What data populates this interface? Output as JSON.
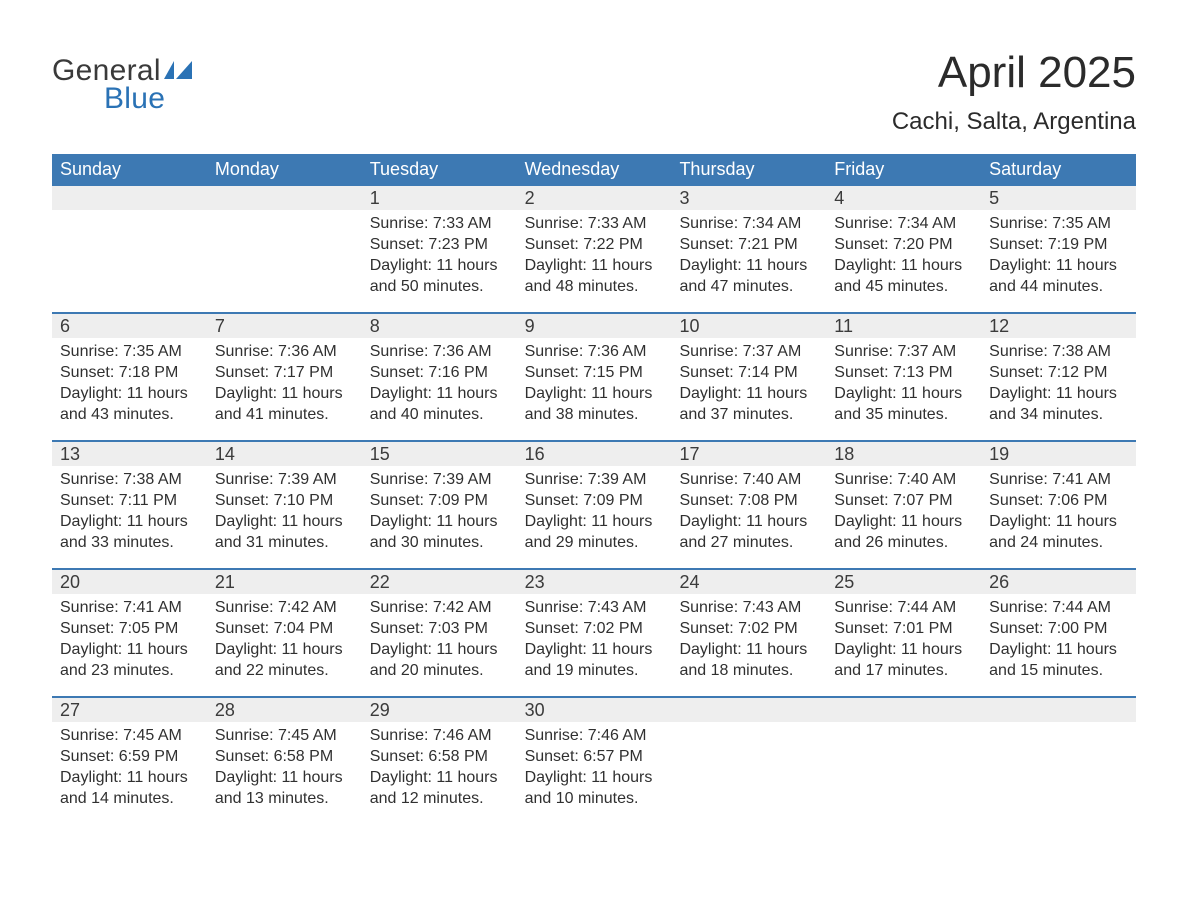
{
  "logo": {
    "line1": "General",
    "line2": "Blue"
  },
  "title": "April 2025",
  "subtitle": "Cachi, Salta, Argentina",
  "colors": {
    "header_bg": "#3d79b3",
    "header_text": "#ffffff",
    "strip_bg": "#eeeeee",
    "row_border": "#3d79b3",
    "body_text": "#303030",
    "logo_gray": "#3a3a3a",
    "logo_blue": "#2a72b5",
    "page_bg": "#ffffff"
  },
  "typography": {
    "title_fs": 44,
    "subtitle_fs": 24,
    "dayheader_fs": 18,
    "daynum_fs": 18,
    "body_fs": 16,
    "logo_fs": 30
  },
  "day_headers": [
    "Sunday",
    "Monday",
    "Tuesday",
    "Wednesday",
    "Thursday",
    "Friday",
    "Saturday"
  ],
  "weeks": [
    [
      {
        "num": "",
        "sunrise": "",
        "sunset": "",
        "daylight1": "",
        "daylight2": ""
      },
      {
        "num": "",
        "sunrise": "",
        "sunset": "",
        "daylight1": "",
        "daylight2": ""
      },
      {
        "num": "1",
        "sunrise": "Sunrise: 7:33 AM",
        "sunset": "Sunset: 7:23 PM",
        "daylight1": "Daylight: 11 hours",
        "daylight2": "and 50 minutes."
      },
      {
        "num": "2",
        "sunrise": "Sunrise: 7:33 AM",
        "sunset": "Sunset: 7:22 PM",
        "daylight1": "Daylight: 11 hours",
        "daylight2": "and 48 minutes."
      },
      {
        "num": "3",
        "sunrise": "Sunrise: 7:34 AM",
        "sunset": "Sunset: 7:21 PM",
        "daylight1": "Daylight: 11 hours",
        "daylight2": "and 47 minutes."
      },
      {
        "num": "4",
        "sunrise": "Sunrise: 7:34 AM",
        "sunset": "Sunset: 7:20 PM",
        "daylight1": "Daylight: 11 hours",
        "daylight2": "and 45 minutes."
      },
      {
        "num": "5",
        "sunrise": "Sunrise: 7:35 AM",
        "sunset": "Sunset: 7:19 PM",
        "daylight1": "Daylight: 11 hours",
        "daylight2": "and 44 minutes."
      }
    ],
    [
      {
        "num": "6",
        "sunrise": "Sunrise: 7:35 AM",
        "sunset": "Sunset: 7:18 PM",
        "daylight1": "Daylight: 11 hours",
        "daylight2": "and 43 minutes."
      },
      {
        "num": "7",
        "sunrise": "Sunrise: 7:36 AM",
        "sunset": "Sunset: 7:17 PM",
        "daylight1": "Daylight: 11 hours",
        "daylight2": "and 41 minutes."
      },
      {
        "num": "8",
        "sunrise": "Sunrise: 7:36 AM",
        "sunset": "Sunset: 7:16 PM",
        "daylight1": "Daylight: 11 hours",
        "daylight2": "and 40 minutes."
      },
      {
        "num": "9",
        "sunrise": "Sunrise: 7:36 AM",
        "sunset": "Sunset: 7:15 PM",
        "daylight1": "Daylight: 11 hours",
        "daylight2": "and 38 minutes."
      },
      {
        "num": "10",
        "sunrise": "Sunrise: 7:37 AM",
        "sunset": "Sunset: 7:14 PM",
        "daylight1": "Daylight: 11 hours",
        "daylight2": "and 37 minutes."
      },
      {
        "num": "11",
        "sunrise": "Sunrise: 7:37 AM",
        "sunset": "Sunset: 7:13 PM",
        "daylight1": "Daylight: 11 hours",
        "daylight2": "and 35 minutes."
      },
      {
        "num": "12",
        "sunrise": "Sunrise: 7:38 AM",
        "sunset": "Sunset: 7:12 PM",
        "daylight1": "Daylight: 11 hours",
        "daylight2": "and 34 minutes."
      }
    ],
    [
      {
        "num": "13",
        "sunrise": "Sunrise: 7:38 AM",
        "sunset": "Sunset: 7:11 PM",
        "daylight1": "Daylight: 11 hours",
        "daylight2": "and 33 minutes."
      },
      {
        "num": "14",
        "sunrise": "Sunrise: 7:39 AM",
        "sunset": "Sunset: 7:10 PM",
        "daylight1": "Daylight: 11 hours",
        "daylight2": "and 31 minutes."
      },
      {
        "num": "15",
        "sunrise": "Sunrise: 7:39 AM",
        "sunset": "Sunset: 7:09 PM",
        "daylight1": "Daylight: 11 hours",
        "daylight2": "and 30 minutes."
      },
      {
        "num": "16",
        "sunrise": "Sunrise: 7:39 AM",
        "sunset": "Sunset: 7:09 PM",
        "daylight1": "Daylight: 11 hours",
        "daylight2": "and 29 minutes."
      },
      {
        "num": "17",
        "sunrise": "Sunrise: 7:40 AM",
        "sunset": "Sunset: 7:08 PM",
        "daylight1": "Daylight: 11 hours",
        "daylight2": "and 27 minutes."
      },
      {
        "num": "18",
        "sunrise": "Sunrise: 7:40 AM",
        "sunset": "Sunset: 7:07 PM",
        "daylight1": "Daylight: 11 hours",
        "daylight2": "and 26 minutes."
      },
      {
        "num": "19",
        "sunrise": "Sunrise: 7:41 AM",
        "sunset": "Sunset: 7:06 PM",
        "daylight1": "Daylight: 11 hours",
        "daylight2": "and 24 minutes."
      }
    ],
    [
      {
        "num": "20",
        "sunrise": "Sunrise: 7:41 AM",
        "sunset": "Sunset: 7:05 PM",
        "daylight1": "Daylight: 11 hours",
        "daylight2": "and 23 minutes."
      },
      {
        "num": "21",
        "sunrise": "Sunrise: 7:42 AM",
        "sunset": "Sunset: 7:04 PM",
        "daylight1": "Daylight: 11 hours",
        "daylight2": "and 22 minutes."
      },
      {
        "num": "22",
        "sunrise": "Sunrise: 7:42 AM",
        "sunset": "Sunset: 7:03 PM",
        "daylight1": "Daylight: 11 hours",
        "daylight2": "and 20 minutes."
      },
      {
        "num": "23",
        "sunrise": "Sunrise: 7:43 AM",
        "sunset": "Sunset: 7:02 PM",
        "daylight1": "Daylight: 11 hours",
        "daylight2": "and 19 minutes."
      },
      {
        "num": "24",
        "sunrise": "Sunrise: 7:43 AM",
        "sunset": "Sunset: 7:02 PM",
        "daylight1": "Daylight: 11 hours",
        "daylight2": "and 18 minutes."
      },
      {
        "num": "25",
        "sunrise": "Sunrise: 7:44 AM",
        "sunset": "Sunset: 7:01 PM",
        "daylight1": "Daylight: 11 hours",
        "daylight2": "and 17 minutes."
      },
      {
        "num": "26",
        "sunrise": "Sunrise: 7:44 AM",
        "sunset": "Sunset: 7:00 PM",
        "daylight1": "Daylight: 11 hours",
        "daylight2": "and 15 minutes."
      }
    ],
    [
      {
        "num": "27",
        "sunrise": "Sunrise: 7:45 AM",
        "sunset": "Sunset: 6:59 PM",
        "daylight1": "Daylight: 11 hours",
        "daylight2": "and 14 minutes."
      },
      {
        "num": "28",
        "sunrise": "Sunrise: 7:45 AM",
        "sunset": "Sunset: 6:58 PM",
        "daylight1": "Daylight: 11 hours",
        "daylight2": "and 13 minutes."
      },
      {
        "num": "29",
        "sunrise": "Sunrise: 7:46 AM",
        "sunset": "Sunset: 6:58 PM",
        "daylight1": "Daylight: 11 hours",
        "daylight2": "and 12 minutes."
      },
      {
        "num": "30",
        "sunrise": "Sunrise: 7:46 AM",
        "sunset": "Sunset: 6:57 PM",
        "daylight1": "Daylight: 11 hours",
        "daylight2": "and 10 minutes."
      },
      {
        "num": "",
        "sunrise": "",
        "sunset": "",
        "daylight1": "",
        "daylight2": ""
      },
      {
        "num": "",
        "sunrise": "",
        "sunset": "",
        "daylight1": "",
        "daylight2": ""
      },
      {
        "num": "",
        "sunrise": "",
        "sunset": "",
        "daylight1": "",
        "daylight2": ""
      }
    ]
  ]
}
